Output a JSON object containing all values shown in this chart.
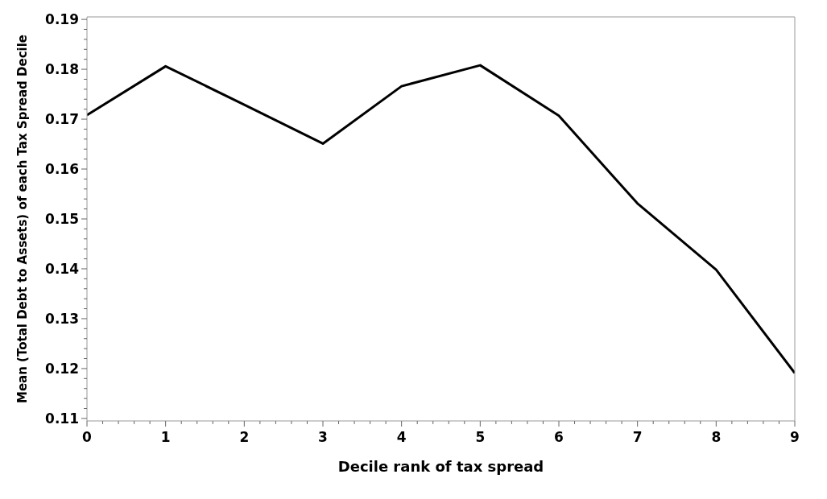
{
  "chart_data": {
    "type": "line",
    "xlabel": "Decile rank of tax spread",
    "ylabel": "Mean (Total Debt to Assets) of each Tax Spread Decile",
    "x": [
      0,
      1,
      2,
      3,
      4,
      5,
      6,
      7,
      8,
      9
    ],
    "series": [
      {
        "color": "#000000",
        "values": [
          0.1708,
          0.1806,
          0.1729,
          0.1651,
          0.1766,
          0.1808,
          0.1707,
          0.1531,
          0.1398,
          0.1191
        ]
      }
    ],
    "xlim": [
      0,
      9
    ],
    "xticks": [
      0,
      {
        "value": 0.2,
        "label": null
      },
      {
        "value": 0.4,
        "label": null
      },
      {
        "value": 0.6,
        "label": null
      },
      {
        "value": 0.8,
        "label": null
      },
      1,
      {
        "value": 1.2,
        "label": null
      },
      {
        "value": 1.4,
        "label": null
      },
      {
        "value": 1.6,
        "label": null
      },
      {
        "value": 1.8,
        "label": null
      },
      2,
      {
        "value": 2.2,
        "label": null
      },
      {
        "value": 2.4,
        "label": null
      },
      {
        "value": 2.6,
        "label": null
      },
      {
        "value": 2.8,
        "label": null
      },
      3,
      {
        "value": 3.2,
        "label": null
      },
      {
        "value": 3.4,
        "label": null
      },
      {
        "value": 3.6,
        "label": null
      },
      {
        "value": 3.8,
        "label": null
      },
      4,
      {
        "value": 4.2,
        "label": null
      },
      {
        "value": 4.4,
        "label": null
      },
      {
        "value": 4.6,
        "label": null
      },
      {
        "value": 4.8,
        "label": null
      },
      5,
      {
        "value": 5.2,
        "label": null
      },
      {
        "value": 5.4,
        "label": null
      },
      {
        "value": 5.6,
        "label": null
      },
      {
        "value": 5.8,
        "label": null
      },
      6,
      {
        "value": 6.2,
        "label": null
      },
      {
        "value": 6.4,
        "label": null
      },
      {
        "value": 6.6,
        "label": null
      },
      {
        "value": 6.8,
        "label": null
      },
      7,
      {
        "value": 7.2,
        "label": null
      },
      {
        "value": 7.4,
        "label": null
      },
      {
        "value": 7.6,
        "label": null
      },
      {
        "value": 7.8,
        "label": null
      },
      8,
      {
        "value": 8.2,
        "label": null
      },
      {
        "value": 8.4,
        "label": null
      },
      {
        "value": 8.6,
        "label": null
      },
      {
        "value": 8.8,
        "label": null
      },
      9
    ],
    "ylim": [
      0.1095,
      0.1905
    ],
    "yticks": [
      0.11,
      {
        "value": 0.112,
        "label": null
      },
      {
        "value": 0.114,
        "label": null
      },
      {
        "value": 0.116,
        "label": null
      },
      {
        "value": 0.118,
        "label": null
      },
      0.12,
      {
        "value": 0.122,
        "label": null
      },
      {
        "value": 0.124,
        "label": null
      },
      {
        "value": 0.126,
        "label": null
      },
      {
        "value": 0.128,
        "label": null
      },
      0.13,
      {
        "value": 0.132,
        "label": null
      },
      {
        "value": 0.134,
        "label": null
      },
      {
        "value": 0.136,
        "label": null
      },
      {
        "value": 0.138,
        "label": null
      },
      0.14,
      {
        "value": 0.142,
        "label": null
      },
      {
        "value": 0.144,
        "label": null
      },
      {
        "value": 0.146,
        "label": null
      },
      {
        "value": 0.148,
        "label": null
      },
      0.15,
      {
        "value": 0.152,
        "label": null
      },
      {
        "value": 0.154,
        "label": null
      },
      {
        "value": 0.156,
        "label": null
      },
      {
        "value": 0.158,
        "label": null
      },
      0.16,
      {
        "value": 0.162,
        "label": null
      },
      {
        "value": 0.164,
        "label": null
      },
      {
        "value": 0.166,
        "label": null
      },
      {
        "value": 0.168,
        "label": null
      },
      0.17,
      {
        "value": 0.172,
        "label": null
      },
      {
        "value": 0.174,
        "label": null
      },
      {
        "value": 0.176,
        "label": null
      },
      {
        "value": 0.178,
        "label": null
      },
      0.18,
      {
        "value": 0.182,
        "label": null
      },
      {
        "value": 0.184,
        "label": null
      },
      {
        "value": 0.186,
        "label": null
      },
      {
        "value": 0.188,
        "label": null
      },
      0.19
    ],
    "grid": false,
    "legend": false,
    "marker": "none",
    "line_style": "solid"
  }
}
